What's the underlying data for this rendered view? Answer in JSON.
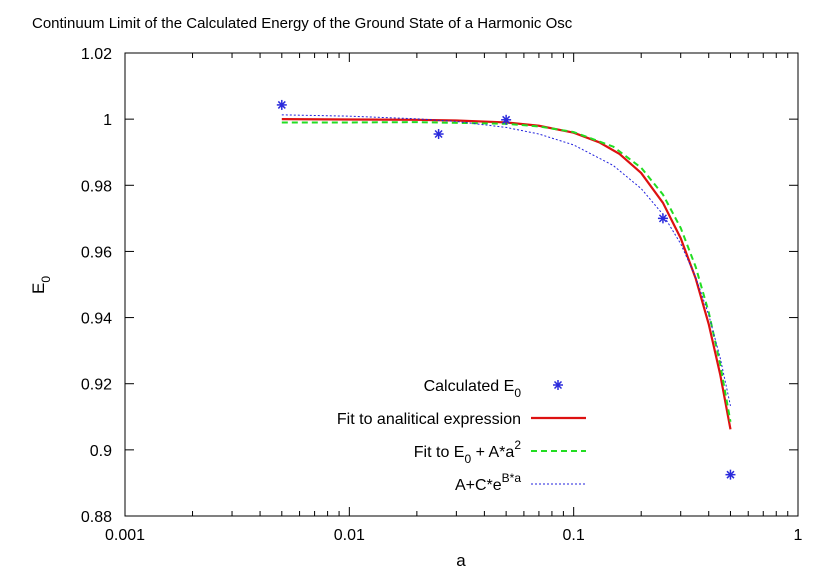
{
  "chart_data": {
    "type": "line",
    "title": "Continuum Limit of the Calculated Energy of the Ground State of a Harmonic Osc",
    "xlabel": "a",
    "ylabel": "E",
    "ylabel_sub": "0",
    "xscale": "log",
    "xlim": [
      0.001,
      1
    ],
    "ylim": [
      0.88,
      1.02
    ],
    "x_ticks": [
      0.001,
      0.01,
      0.1,
      1
    ],
    "x_tick_labels": [
      "0.001",
      "0.01",
      "0.1",
      "1"
    ],
    "y_ticks": [
      0.88,
      0.9,
      0.92,
      0.94,
      0.96,
      0.98,
      1.0,
      1.02
    ],
    "y_tick_labels": [
      "0.88",
      "0.9",
      "0.92",
      "0.94",
      "0.96",
      "0.98",
      "1",
      "1.02"
    ],
    "grid": false,
    "legend_position": "bottom-right",
    "legend": {
      "calculated": {
        "text": "Calculated E",
        "sub": "0"
      },
      "analytical": {
        "text": "Fit to analitical expression"
      },
      "quadratic": {
        "text": "Fit to E",
        "sub": "0",
        "mid": " + A*a",
        "sup": "2"
      },
      "exponential": {
        "text": "A+C*e",
        "sup": "B*a"
      }
    },
    "series": [
      {
        "key": "calculated",
        "kind": "points",
        "color": "#2a2adc",
        "x": [
          0.005,
          0.025,
          0.05,
          0.25,
          0.5
        ],
        "y": [
          1.0043,
          0.9955,
          0.9998,
          0.97,
          0.8925
        ]
      },
      {
        "key": "analytical",
        "kind": "line",
        "color": "#dd1111",
        "dash": "solid",
        "x": [
          0.005,
          0.01,
          0.02,
          0.03,
          0.05,
          0.07,
          0.1,
          0.13,
          0.16,
          0.2,
          0.25,
          0.3,
          0.35,
          0.4,
          0.45,
          0.5
        ],
        "y": [
          1.0,
          0.9999,
          0.9998,
          0.9996,
          0.999,
          0.998,
          0.9959,
          0.993,
          0.9895,
          0.9837,
          0.9747,
          0.964,
          0.9518,
          0.938,
          0.9228,
          0.9062
        ]
      },
      {
        "key": "quadratic",
        "kind": "line",
        "color": "#22dd22",
        "dash": "dashed",
        "x": [
          0.005,
          0.01,
          0.02,
          0.05,
          0.07,
          0.1,
          0.15,
          0.2,
          0.25,
          0.3,
          0.35,
          0.4,
          0.45,
          0.5
        ],
        "y": [
          0.999,
          0.999,
          0.9991,
          0.9986,
          0.9978,
          0.9961,
          0.9917,
          0.9853,
          0.9772,
          0.9671,
          0.9553,
          0.9416,
          0.9259,
          0.9085
        ]
      },
      {
        "key": "exponential",
        "kind": "line",
        "color": "#2222dd",
        "dash": "dotted",
        "x": [
          0.005,
          0.01,
          0.02,
          0.03,
          0.05,
          0.07,
          0.1,
          0.15,
          0.2,
          0.25,
          0.3,
          0.35,
          0.4,
          0.45,
          0.5
        ],
        "y": [
          1.0013,
          1.0009,
          1.0001,
          0.9993,
          0.9975,
          0.9955,
          0.9922,
          0.986,
          0.979,
          0.9712,
          0.9623,
          0.9522,
          0.9408,
          0.9278,
          0.9133
        ]
      }
    ]
  }
}
